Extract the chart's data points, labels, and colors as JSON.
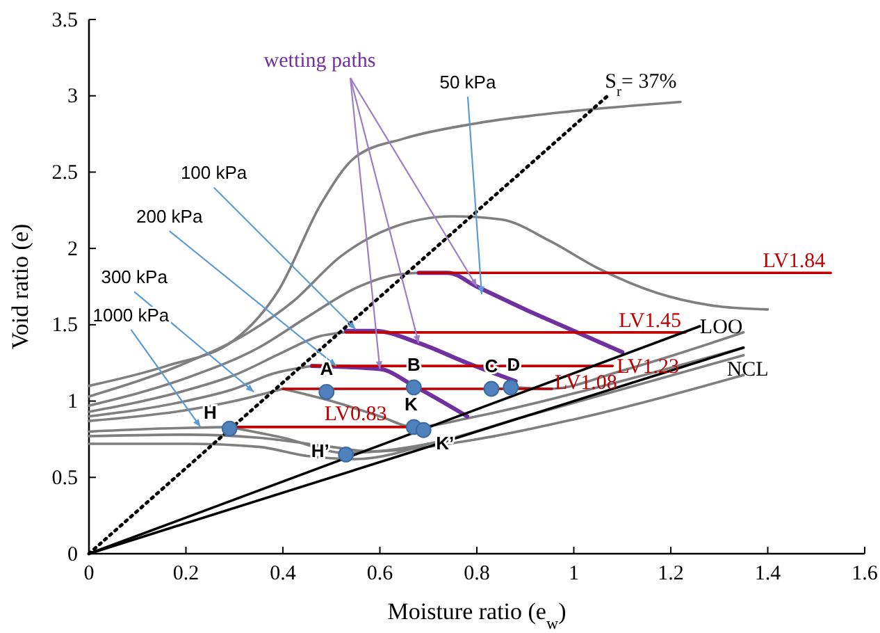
{
  "chart_data": {
    "type": "line",
    "xlabel": "Moisture ratio (e$_{w}$)",
    "ylabel": "Void ratio (e)",
    "xlim": [
      0,
      1.6
    ],
    "xticks": [
      0,
      0.2,
      0.4,
      0.6,
      0.8,
      1,
      1.2,
      1.4,
      1.6
    ],
    "ylim": [
      0,
      3.5
    ],
    "yticks": [
      0,
      0.5,
      1,
      1.5,
      2,
      2.5,
      3,
      3.5
    ],
    "grid": false,
    "series": [
      {
        "color": "#7f7f7f",
        "x": [
          0,
          0.16,
          0.3,
          0.39,
          0.48,
          0.55,
          0.65,
          0.8,
          1,
          1.22
        ],
        "values": [
          1.1,
          1.23,
          1.4,
          1.72,
          2.3,
          2.6,
          2.72,
          2.82,
          2.9,
          2.96
        ]
      },
      {
        "color": "#7f7f7f",
        "x": [
          0,
          0.2,
          0.33,
          0.42,
          0.52,
          0.62,
          0.75,
          0.85,
          0.95,
          1.05,
          1.17,
          1.3,
          1.4
        ],
        "values": [
          1.03,
          1.25,
          1.45,
          1.65,
          1.95,
          2.13,
          2.21,
          2.19,
          2.05,
          1.87,
          1.71,
          1.62,
          1.6
        ]
      },
      {
        "color": "#7f7f7f",
        "x": [
          0,
          0.2,
          0.35,
          0.45,
          0.55,
          0.62,
          0.68
        ],
        "values": [
          0.97,
          1.15,
          1.35,
          1.55,
          1.74,
          1.82,
          1.84
        ]
      },
      {
        "color": "#7f7f7f",
        "x": [
          0,
          0.2,
          0.3,
          0.4,
          0.47,
          0.53
        ],
        "values": [
          0.93,
          1.07,
          1.17,
          1.32,
          1.42,
          1.45
        ]
      },
      {
        "color": "#7f7f7f",
        "x": [
          0,
          0.2,
          0.3,
          0.38,
          0.46
        ],
        "values": [
          0.9,
          1,
          1.08,
          1.18,
          1.23
        ]
      },
      {
        "color": "#7f7f7f",
        "x": [
          0,
          0.2,
          0.3,
          0.4
        ],
        "values": [
          0.87,
          0.94,
          1,
          1.08
        ]
      },
      {
        "color": "#7f7f7f",
        "x": [
          0,
          0.15,
          0.29
        ],
        "values": [
          0.8,
          0.82,
          0.83
        ]
      },
      {
        "color": "#7f7f7f",
        "x": [
          0,
          0.2,
          0.35,
          0.5,
          0.58,
          0.8,
          1,
          1.35
        ],
        "values": [
          0.77,
          0.78,
          0.76,
          0.7,
          0.67,
          0.75,
          0.88,
          1.17
        ]
      },
      {
        "color": "#7f7f7f",
        "x": [
          0,
          0.2,
          0.35,
          0.45,
          0.55,
          0.7
        ],
        "values": [
          0.72,
          0.72,
          0.7,
          0.64,
          0.62,
          0.72
        ]
      },
      {
        "color": "#7f7f7f",
        "x": [
          0.29,
          0.4,
          0.53,
          0.7,
          0.9,
          1.35
        ],
        "values": [
          0.83,
          0.76,
          0.66,
          0.72,
          0.9,
          1.3
        ]
      },
      {
        "color": "#7f7f7f",
        "x": [
          0.4,
          0.5,
          0.6,
          0.67,
          0.8,
          1,
          1.35
        ],
        "values": [
          1.08,
          1,
          0.9,
          0.83,
          0.9,
          1.05,
          1.35
        ]
      },
      {
        "color": "#7f7f7f",
        "x": [
          0.88,
          0.95,
          1.1,
          1.35
        ],
        "values": [
          1.09,
          1.08,
          1.2,
          1.45
        ]
      },
      {
        "color": "#7030a0",
        "x": [
          0.68,
          0.74,
          0.8,
          0.9,
          1,
          1.1
        ],
        "values": [
          1.84,
          1.84,
          1.75,
          1.6,
          1.46,
          1.32
        ]
      },
      {
        "color": "#7030a0",
        "x": [
          0.53,
          0.59,
          0.68,
          0.78,
          0.88
        ],
        "values": [
          1.46,
          1.46,
          1.38,
          1.25,
          1.13
        ]
      },
      {
        "color": "#7030a0",
        "x": [
          0.46,
          0.6,
          0.67,
          0.78
        ],
        "values": [
          1.23,
          1.21,
          1.1,
          0.9
        ]
      },
      {
        "color": "#c00000",
        "x": [
          0.68,
          1.53
        ],
        "values": [
          1.84,
          1.84
        ]
      },
      {
        "color": "#c00000",
        "x": [
          0.53,
          1.23
        ],
        "values": [
          1.45,
          1.45
        ]
      },
      {
        "color": "#c00000",
        "x": [
          0.46,
          1.08
        ],
        "values": [
          1.23,
          1.23
        ]
      },
      {
        "color": "#c00000",
        "x": [
          0.4,
          0.955
        ],
        "values": [
          1.08,
          1.08
        ]
      },
      {
        "color": "#c00000",
        "x": [
          0.29,
          0.7
        ],
        "values": [
          0.83,
          0.83
        ]
      },
      {
        "color": "#000000",
        "x": [
          0,
          1.26
        ],
        "values": [
          0,
          1.49
        ]
      },
      {
        "color": "#000000",
        "x": [
          0,
          1.35
        ],
        "values": [
          0,
          1.35
        ]
      },
      {
        "color": "#000000",
        "line_style": "dotted",
        "x": [
          0,
          1.07
        ],
        "values": [
          0,
          3
        ]
      },
      {
        "type": "scatter",
        "color": "#4f81bd",
        "marker": "circle",
        "x": [
          0.49,
          0.67,
          0.83,
          0.87,
          0.29,
          0.67,
          0.69,
          0.53
        ],
        "values": [
          1.06,
          1.09,
          1.08,
          1.09,
          0.82,
          0.83,
          0.81,
          0.65
        ]
      }
    ],
    "annotations": [
      {
        "text": "50 kPa",
        "x": 0.81,
        "y": 1.7
      },
      {
        "text": "100 kPa",
        "x": 0.55,
        "y": 1.47
      },
      {
        "text": "200 kPa",
        "x": 0.51,
        "y": 1.23
      },
      {
        "text": "300 kPa",
        "x": 0.34,
        "y": 1.06
      },
      {
        "text": "1000 kPa",
        "x": 0.23,
        "y": 0.83
      },
      {
        "text": "wetting paths",
        "x": 0.8,
        "y": 1.75
      },
      {
        "text": "S$_{r}$= 37%",
        "x": 1.07,
        "y": 3
      },
      {
        "text": "LOO",
        "x": 1.26,
        "y": 1.49
      },
      {
        "text": "NCL",
        "x": 1.35,
        "y": 1.35
      },
      {
        "text": "LV1.84",
        "x": 1.53,
        "y": 1.84
      },
      {
        "text": "LV1.45",
        "x": 1.23,
        "y": 1.45
      },
      {
        "text": "LV1.23",
        "x": 1.08,
        "y": 1.23
      },
      {
        "text": "LV1.08",
        "x": 0.955,
        "y": 1.08
      },
      {
        "text": "LV0.83",
        "x": 0.55,
        "y": 0.83
      },
      {
        "text": "A",
        "x": 0.49,
        "y": 1.06
      },
      {
        "text": "B",
        "x": 0.67,
        "y": 1.09
      },
      {
        "text": "C",
        "x": 0.83,
        "y": 1.08
      },
      {
        "text": "D",
        "x": 0.87,
        "y": 1.09
      },
      {
        "text": "H",
        "x": 0.29,
        "y": 0.82
      },
      {
        "text": "K",
        "x": 0.67,
        "y": 0.83
      },
      {
        "text": "K’",
        "x": 0.69,
        "y": 0.81
      },
      {
        "text": "H’",
        "x": 0.53,
        "y": 0.65
      }
    ]
  }
}
